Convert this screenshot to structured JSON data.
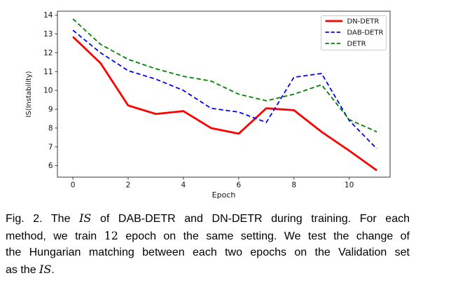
{
  "chart_data": {
    "type": "line",
    "title": "",
    "xlabel": "Epoch",
    "ylabel": "IS(Instability)",
    "x": [
      0,
      1,
      2,
      3,
      4,
      5,
      6,
      7,
      8,
      9,
      10,
      11
    ],
    "xticks": [
      0,
      2,
      4,
      6,
      8,
      10
    ],
    "yticks": [
      6,
      7,
      8,
      9,
      10,
      11,
      12,
      13,
      14
    ],
    "xlim": [
      -0.56,
      11.48
    ],
    "ylim": [
      5.39,
      14.21
    ],
    "grid": false,
    "legend_position": "upper right",
    "axis_color": "#3a3a3a",
    "legend_border_color": "#cccccc",
    "series": [
      {
        "name": "DN-DETR",
        "color": "#ff0000",
        "style": "solid",
        "width": 2.8,
        "values": [
          12.85,
          11.45,
          9.2,
          8.75,
          8.9,
          8.0,
          7.7,
          9.05,
          8.95,
          7.8,
          6.8,
          5.75
        ]
      },
      {
        "name": "DAB-DETR",
        "color": "#0000ff",
        "style": "dashed",
        "width": 1.8,
        "values": [
          13.2,
          12.0,
          11.05,
          10.6,
          10.0,
          9.05,
          8.85,
          8.3,
          10.7,
          10.9,
          8.4,
          6.9
        ]
      },
      {
        "name": "DETR",
        "color": "#008000",
        "style": "dashed",
        "width": 1.8,
        "values": [
          13.8,
          12.45,
          11.65,
          11.15,
          10.75,
          10.5,
          9.8,
          9.45,
          9.8,
          10.3,
          8.45,
          7.8
        ]
      }
    ]
  },
  "caption": {
    "lines": [
      {
        "justify": true,
        "segments": [
          {
            "t": "Fig. 2. The ",
            "s": "n"
          },
          {
            "t": "IS",
            "s": "m"
          },
          {
            "t": " of DAB-DETR and DN-DETR during training. For each",
            "s": "n"
          }
        ]
      },
      {
        "justify": true,
        "segments": [
          {
            "t": "method, we train ",
            "s": "n"
          },
          {
            "t": "12",
            "s": "d"
          },
          {
            "t": " epoch on the same setting. We test the change of",
            "s": "n"
          }
        ]
      },
      {
        "justify": true,
        "segments": [
          {
            "t": "the Hungarian matching between each two epochs on the Validation set",
            "s": "n"
          }
        ]
      },
      {
        "justify": false,
        "segments": [
          {
            "t": "as the ",
            "s": "n"
          },
          {
            "t": "IS",
            "s": "m"
          },
          {
            "t": ".",
            "s": "n"
          }
        ]
      }
    ]
  }
}
